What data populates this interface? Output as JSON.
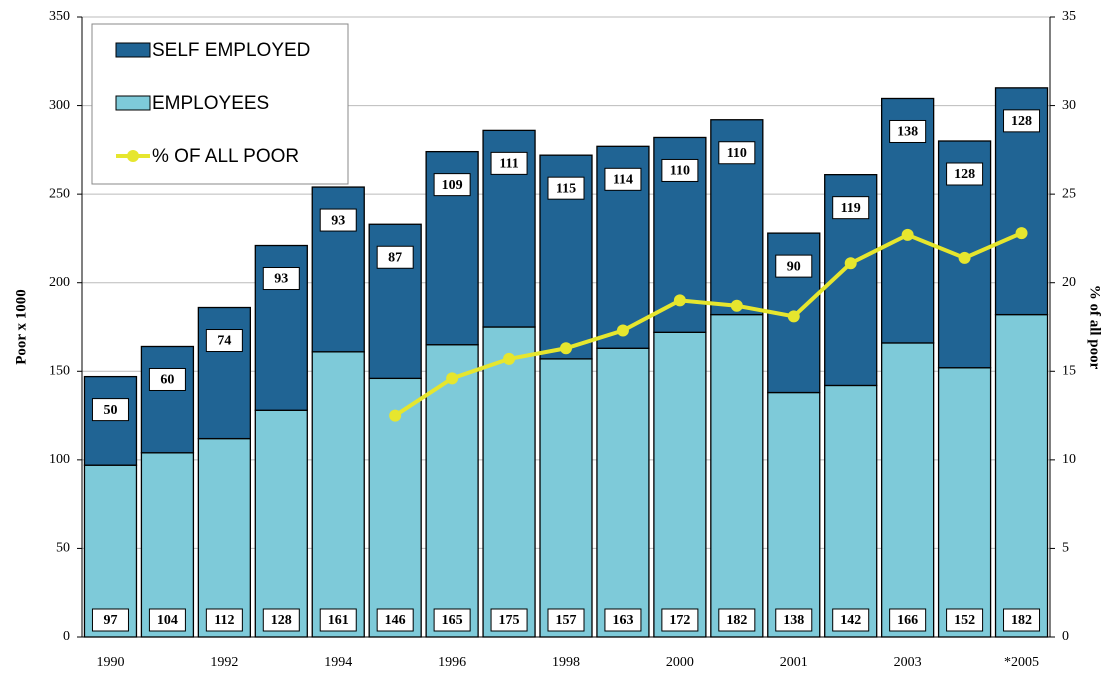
{
  "chart_data": {
    "type": "bar",
    "y_label": "Poor x 1000",
    "y2_label": "% of all poor",
    "categories": [
      "1990",
      null,
      "1992",
      null,
      "1994",
      null,
      "1996",
      null,
      "1998",
      null,
      "2000",
      null,
      "2001",
      null,
      "2003",
      null,
      "*2005"
    ],
    "series": [
      {
        "name": "EMPLOYEES",
        "color": "#7ecad9",
        "values": [
          97,
          104,
          112,
          128,
          161,
          146,
          165,
          175,
          157,
          163,
          172,
          182,
          138,
          142,
          166,
          152,
          182
        ]
      },
      {
        "name": "SELF EMPLOYED",
        "color": "#206494",
        "values": [
          50,
          60,
          74,
          93,
          93,
          87,
          109,
          111,
          115,
          114,
          110,
          110,
          90,
          119,
          138,
          128,
          128
        ]
      },
      {
        "name": "% OF ALL POOR",
        "color": "#e6e62e",
        "type": "line",
        "axis": "y2",
        "values": [
          null,
          null,
          null,
          null,
          null,
          12.5,
          14.6,
          15.7,
          16.3,
          17.3,
          19.0,
          18.7,
          18.1,
          21.1,
          22.7,
          21.4,
          22.8
        ]
      }
    ],
    "ylim": [
      0,
      350
    ],
    "yticks": [
      0,
      50,
      100,
      150,
      200,
      250,
      300,
      350
    ],
    "y2lim": [
      0,
      35
    ],
    "y2ticks": [
      0,
      5,
      10,
      15,
      20,
      25,
      30,
      35
    ],
    "grid": true,
    "legend": "upper left"
  }
}
